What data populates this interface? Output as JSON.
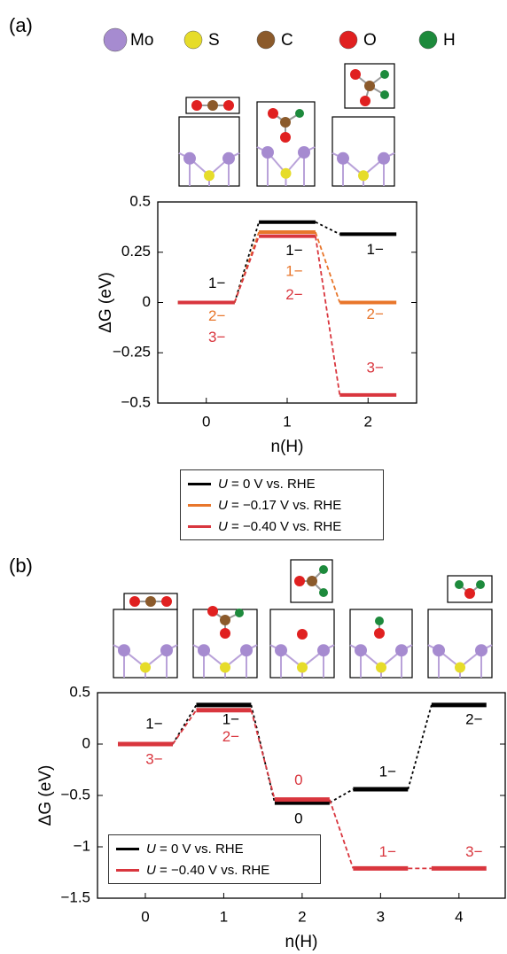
{
  "panel_labels": [
    "(a)",
    "(b)"
  ],
  "atom_legend": [
    {
      "name": "Mo",
      "color": "#a68bd0"
    },
    {
      "name": "S",
      "color": "#e6dc2a"
    },
    {
      "name": "C",
      "color": "#8b5a2b"
    },
    {
      "name": "O",
      "color": "#e02020"
    },
    {
      "name": "H",
      "color": "#1d8a3c"
    }
  ],
  "chart_data": [
    {
      "type": "step",
      "x": [
        0,
        1,
        2
      ],
      "xlim": [
        -0.6,
        2.6
      ],
      "xticks": [
        0,
        1,
        2
      ],
      "ylim": [
        -0.5,
        0.5
      ],
      "yticks": [
        {
          "value": -0.5,
          "label": "−0.5"
        },
        {
          "value": -0.25,
          "label": "−0.25"
        },
        0,
        0.25,
        0.5
      ],
      "xlabel": "n(H)",
      "ylabel": "ΔG (eV)",
      "legend": "bottom",
      "series": [
        {
          "name": "U = 0 V vs. RHE",
          "color": "#000000",
          "values": [
            0,
            0.4,
            0.34
          ],
          "state_labels": [
            "1−",
            "1−",
            "1−"
          ]
        },
        {
          "name": "U = −0.17 V vs. RHE",
          "color": "#e8762b",
          "values": [
            0,
            0.35,
            0
          ],
          "state_labels": [
            "2−",
            "1−",
            "2−"
          ]
        },
        {
          "name": "U = −0.40 V vs. RHE",
          "color": "#d9363e",
          "values": [
            0,
            0.33,
            -0.46
          ],
          "state_labels": [
            "3−",
            "2−",
            "3−"
          ]
        }
      ]
    },
    {
      "type": "step",
      "x": [
        0,
        1,
        2,
        3,
        4
      ],
      "xlim": [
        -0.61,
        4.59
      ],
      "xticks": [
        0,
        1,
        2,
        3,
        4
      ],
      "ylim": [
        -1.5,
        0.5
      ],
      "yticks": [
        {
          "value": -1.5,
          "label": "−1.5"
        },
        {
          "value": -1,
          "label": "−1"
        },
        {
          "value": -0.5,
          "label": "−0.5"
        },
        0,
        0.5
      ],
      "xlabel": "n(H)",
      "ylabel": "ΔG (eV)",
      "legend": "lower left",
      "series": [
        {
          "name": "U = 0 V vs. RHE",
          "color": "#000000",
          "values": [
            0,
            0.38,
            -0.57,
            -0.44,
            0.38
          ],
          "state_labels": [
            "1−",
            "1−",
            "0",
            "1−",
            "2−"
          ]
        },
        {
          "name": "U = −0.40 V vs. RHE",
          "color": "#d9363e",
          "values": [
            0,
            0.33,
            -0.54,
            -1.21,
            -1.21
          ],
          "state_labels": [
            "3−",
            "2−",
            "0",
            "1−",
            "3−"
          ]
        }
      ]
    }
  ]
}
